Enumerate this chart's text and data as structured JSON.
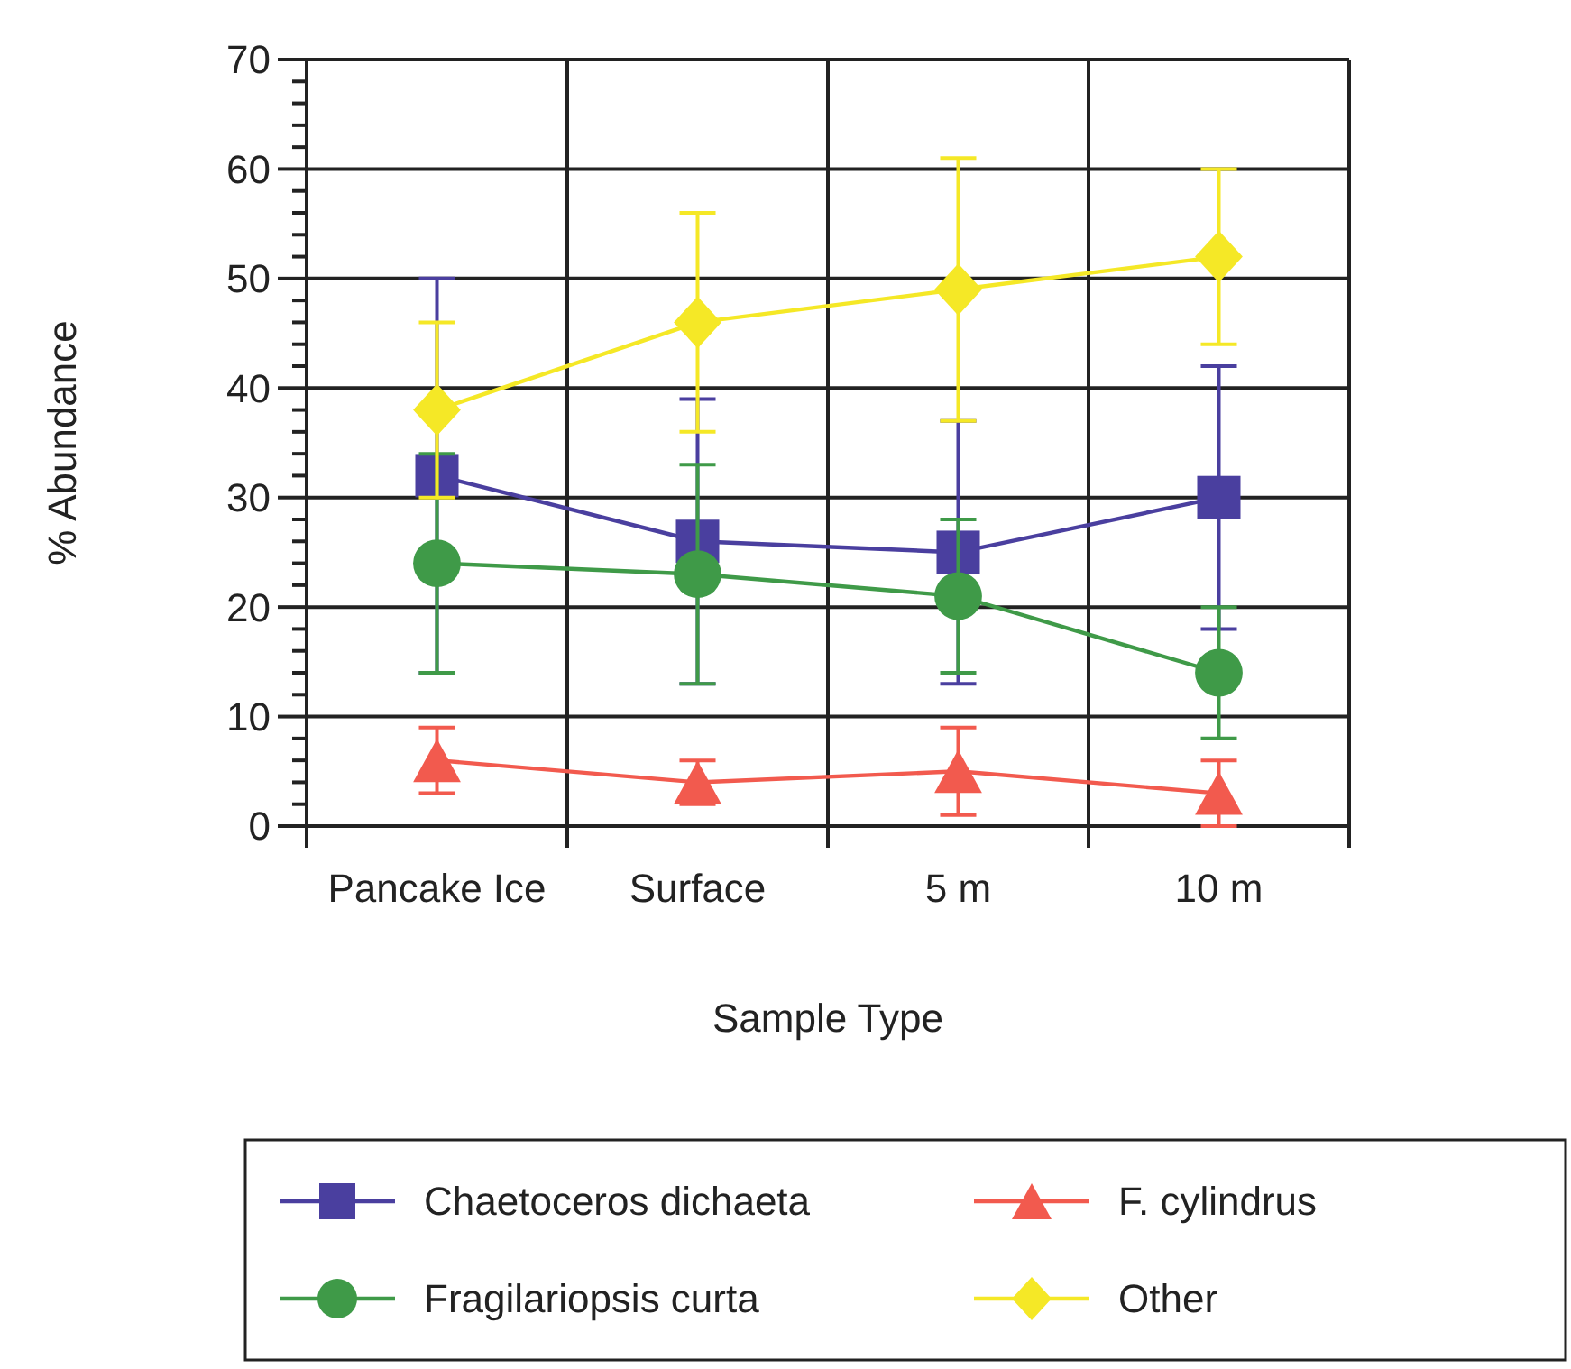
{
  "chart_data": {
    "type": "line",
    "xlabel": "Sample Type",
    "ylabel": "% Abundance",
    "categories": [
      "Pancake Ice",
      "Surface",
      "5 m",
      "10 m"
    ],
    "ylim": [
      0,
      70
    ],
    "yticks": [
      0,
      {
        "value": 2,
        "label": null
      },
      {
        "value": 4,
        "label": null
      },
      {
        "value": 6,
        "label": null
      },
      {
        "value": 8,
        "label": null
      },
      10,
      {
        "value": 12,
        "label": null
      },
      {
        "value": 14,
        "label": null
      },
      {
        "value": 16,
        "label": null
      },
      {
        "value": 18,
        "label": null
      },
      20,
      {
        "value": 22,
        "label": null
      },
      {
        "value": 24,
        "label": null
      },
      {
        "value": 26,
        "label": null
      },
      {
        "value": 28,
        "label": null
      },
      30,
      {
        "value": 32,
        "label": null
      },
      {
        "value": 34,
        "label": null
      },
      {
        "value": 36,
        "label": null
      },
      {
        "value": 38,
        "label": null
      },
      40,
      {
        "value": 42,
        "label": null
      },
      {
        "value": 44,
        "label": null
      },
      {
        "value": 46,
        "label": null
      },
      {
        "value": 48,
        "label": null
      },
      50,
      {
        "value": 52,
        "label": null
      },
      {
        "value": 54,
        "label": null
      },
      {
        "value": 56,
        "label": null
      },
      {
        "value": 58,
        "label": null
      },
      60,
      {
        "value": 62,
        "label": null
      },
      {
        "value": 64,
        "label": null
      },
      {
        "value": 66,
        "label": null
      },
      {
        "value": 68,
        "label": null
      },
      70
    ],
    "grid": true,
    "legend": "bottom",
    "series": [
      {
        "name": "Chaetoceros dichaeta",
        "color": "#4a3f9f",
        "marker": "square",
        "values": [
          32,
          26,
          25,
          30
        ],
        "errors": [
          [
            14,
            50
          ],
          [
            13,
            39
          ],
          [
            13,
            37
          ],
          [
            18,
            42
          ]
        ]
      },
      {
        "name": "F.  cylindrus",
        "color": "#f25a4e",
        "marker": "triangle",
        "values": [
          6,
          4,
          5,
          3
        ],
        "errors": [
          [
            3,
            9
          ],
          [
            2,
            6
          ],
          [
            1,
            9
          ],
          [
            0,
            6
          ]
        ]
      },
      {
        "name": "Fragilariopsis curta",
        "color": "#3f9a48",
        "marker": "circle",
        "values": [
          24,
          23,
          21,
          14
        ],
        "errors": [
          [
            14,
            34
          ],
          [
            13,
            33
          ],
          [
            14,
            28
          ],
          [
            8,
            20
          ]
        ]
      },
      {
        "name": "Other",
        "color": "#f5e826",
        "marker": "diamond",
        "values": [
          38,
          46,
          49,
          52
        ],
        "errors": [
          [
            30,
            46
          ],
          [
            36,
            56
          ],
          [
            37,
            61
          ],
          [
            44,
            60
          ]
        ]
      }
    ]
  }
}
